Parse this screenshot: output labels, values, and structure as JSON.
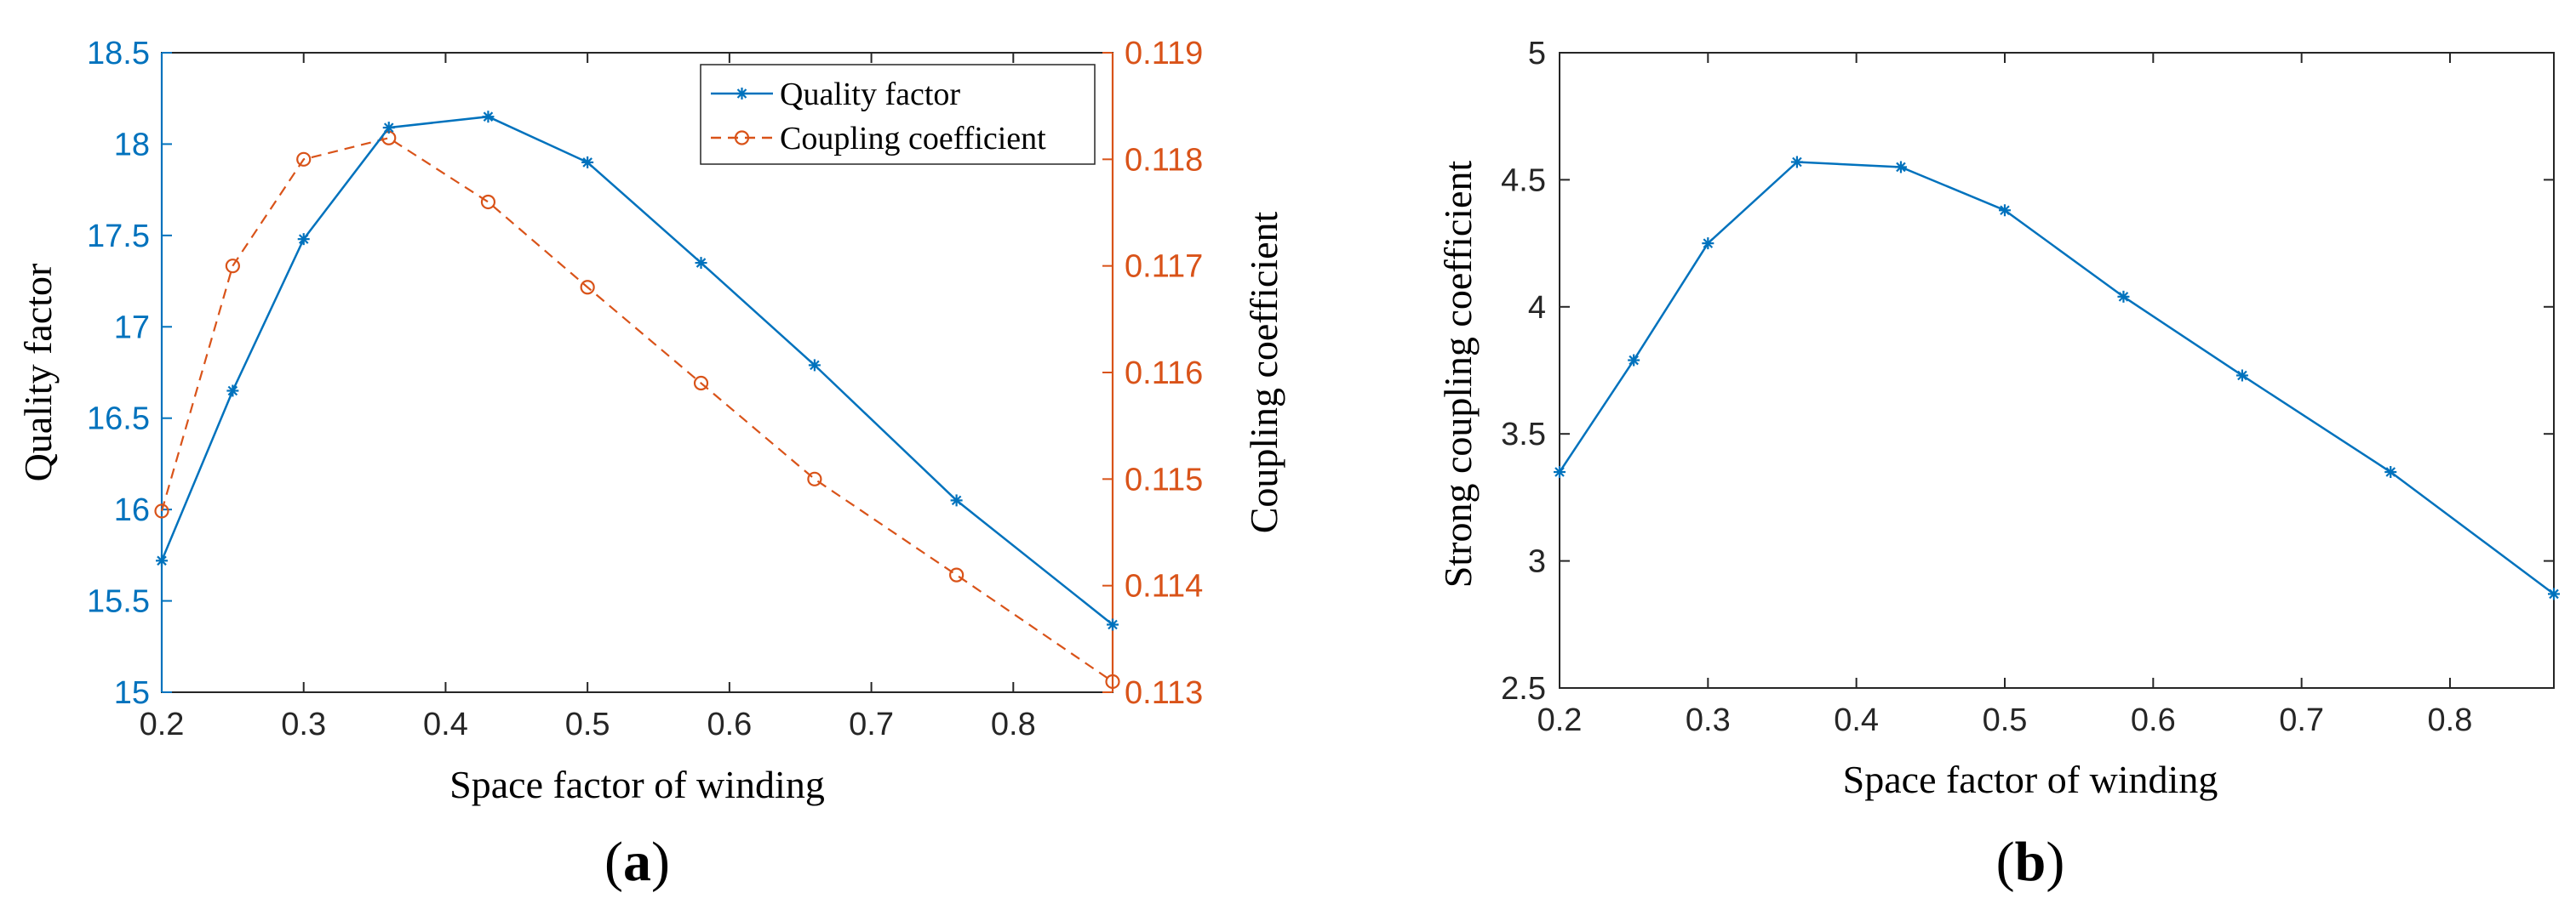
{
  "chart_data": [
    {
      "type": "line",
      "panel_label": "(a)",
      "panel_label_parts": [
        "(",
        "a",
        ")"
      ],
      "xlabel": "Space factor of winding",
      "ylabel_left": "Quality factor",
      "ylabel_right": "Coupling coefficient",
      "xlim": [
        0.2,
        0.87
      ],
      "ylim_left": [
        15,
        18.5
      ],
      "ylim_right": [
        0.113,
        0.119
      ],
      "x_ticks": [
        "0.2",
        "0.3",
        "0.4",
        "0.5",
        "0.6",
        "0.7",
        "0.8"
      ],
      "x_tick_values": [
        0.2,
        0.3,
        0.4,
        0.5,
        0.6,
        0.7,
        0.8
      ],
      "y_ticks_left": [
        "15",
        "15.5",
        "16",
        "16.5",
        "17",
        "17.5",
        "18",
        "18.5"
      ],
      "y_tick_values_left": [
        15,
        15.5,
        16,
        16.5,
        17,
        17.5,
        18,
        18.5
      ],
      "y_ticks_right": [
        "0.113",
        "0.114",
        "0.115",
        "0.116",
        "0.117",
        "0.118",
        "0.119"
      ],
      "y_tick_values_right": [
        0.113,
        0.114,
        0.115,
        0.116,
        0.117,
        0.118,
        0.119
      ],
      "legend_position": "top-right",
      "series": [
        {
          "name": "Quality factor",
          "axis": "left",
          "marker": "asterisk",
          "line_style": "solid",
          "color": "#0072BD",
          "x": [
            0.2,
            0.25,
            0.3,
            0.36,
            0.43,
            0.5,
            0.58,
            0.66,
            0.76,
            0.87
          ],
          "y": [
            15.72,
            16.65,
            17.48,
            18.09,
            18.15,
            17.9,
            17.35,
            16.79,
            16.05,
            15.37
          ]
        },
        {
          "name": "Coupling coefficient",
          "axis": "right",
          "marker": "circle",
          "line_style": "dashed",
          "color": "#D95319",
          "x": [
            0.2,
            0.25,
            0.3,
            0.36,
            0.43,
            0.5,
            0.58,
            0.66,
            0.76,
            0.87
          ],
          "y": [
            0.1147,
            0.117,
            0.118,
            0.1182,
            0.1176,
            0.1168,
            0.1159,
            0.115,
            0.1141,
            0.1131
          ]
        }
      ]
    },
    {
      "type": "line",
      "panel_label": "(b)",
      "panel_label_parts": [
        "(",
        "b",
        ")"
      ],
      "xlabel": "Space factor of winding",
      "ylabel": "Strong coupling coefficient",
      "xlim": [
        0.2,
        0.87
      ],
      "ylim": [
        2.5,
        5
      ],
      "x_ticks": [
        "0.2",
        "0.3",
        "0.4",
        "0.5",
        "0.6",
        "0.7",
        "0.8"
      ],
      "x_tick_values": [
        0.2,
        0.3,
        0.4,
        0.5,
        0.6,
        0.7,
        0.8
      ],
      "y_ticks": [
        "2.5",
        "3",
        "3.5",
        "4",
        "4.5",
        "5"
      ],
      "y_tick_values": [
        2.5,
        3,
        3.5,
        4,
        4.5,
        5
      ],
      "series": [
        {
          "name": "Strong coupling coefficient",
          "marker": "asterisk",
          "line_style": "solid",
          "color": "#0072BD",
          "x": [
            0.2,
            0.25,
            0.3,
            0.36,
            0.43,
            0.5,
            0.58,
            0.66,
            0.76,
            0.87
          ],
          "y": [
            3.35,
            3.79,
            4.25,
            4.57,
            4.55,
            4.38,
            4.04,
            3.73,
            3.35,
            2.87
          ]
        }
      ]
    }
  ]
}
